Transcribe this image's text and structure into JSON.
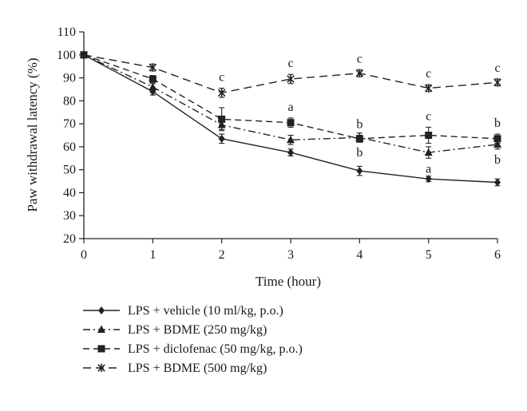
{
  "chart_data": {
    "type": "line",
    "xlabel": "Time (hour)",
    "ylabel": "Paw withdrawal latency (%)",
    "x": [
      0,
      1,
      2,
      3,
      4,
      5,
      6
    ],
    "xlim": [
      0,
      6
    ],
    "ylim": [
      20,
      110
    ],
    "yticks": [
      20,
      30,
      40,
      50,
      60,
      70,
      80,
      90,
      100,
      110
    ],
    "xticks": [
      0,
      1,
      2,
      3,
      4,
      5,
      6
    ],
    "grid": false,
    "legend_position": "bottom",
    "series": [
      {
        "name": "LPS + vehicle (10 ml/kg, p.o.)",
        "marker": "diamond",
        "line_style": "solid",
        "values": [
          100,
          84,
          63.5,
          57.5,
          49.5,
          46,
          44.5
        ],
        "errors": [
          0,
          1.5,
          2.0,
          1.5,
          2.0,
          1.2,
          1.5
        ],
        "labels": [
          "",
          "",
          "",
          "",
          "",
          "",
          ""
        ]
      },
      {
        "name": "LPS + BDME (250 mg/kg)",
        "marker": "triangle",
        "line_style": "dashdot",
        "values": [
          100,
          86,
          69.5,
          63,
          64,
          57.5,
          61
        ],
        "errors": [
          0,
          1.5,
          2.0,
          2.0,
          2.0,
          2.5,
          2.0
        ],
        "labels": [
          "",
          "",
          "",
          "",
          "b",
          "a",
          "b"
        ]
      },
      {
        "name": "LPS + diclofenac (50 mg/kg, p.o.)",
        "marker": "square",
        "line_style": "dashed",
        "values": [
          100,
          89.5,
          72,
          70.5,
          63.5,
          65,
          63.5
        ],
        "errors": [
          0,
          1.5,
          5.0,
          2.0,
          1.5,
          3.5,
          2.0
        ],
        "labels": [
          "",
          "",
          "",
          "a",
          "b",
          "c",
          "b"
        ]
      },
      {
        "name": "LPS + BDME (500 mg/kg)",
        "marker": "star",
        "line_style": "longdash",
        "values": [
          100,
          94.5,
          83.5,
          89.5,
          92,
          85.5,
          88
        ],
        "errors": [
          0,
          1.5,
          2.0,
          2.0,
          1.5,
          1.5,
          1.5
        ],
        "labels": [
          "",
          "",
          "c",
          "c",
          "c",
          "c",
          "c"
        ]
      }
    ]
  }
}
